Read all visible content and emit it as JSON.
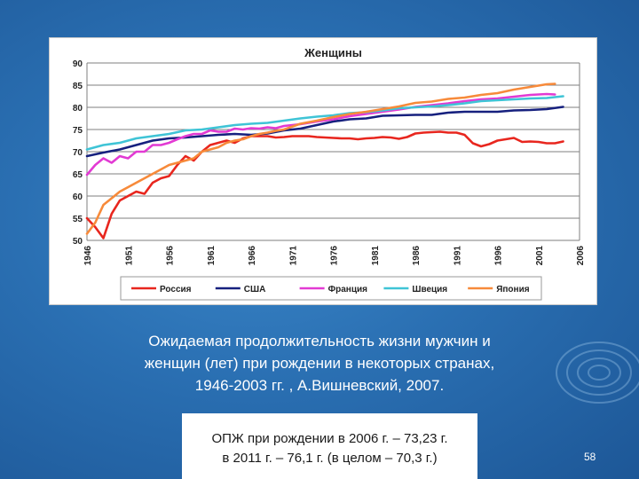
{
  "slide": {
    "caption_lines": [
      "Ожидаемая продолжительность жизни мужчин и",
      "женщин (лет) при рождении в некоторых странах,",
      "1946-2003 гг. , А.Вишневский, 2007."
    ],
    "note_lines": [
      "ОПЖ при рождении в 2006 г. – 73,23 г.",
      "в 2011 г. – 76,1 г. (в целом – 70,3 г.)"
    ],
    "page_number": "58"
  },
  "chart_data": {
    "type": "line",
    "title": "Женщины",
    "xlabel": "",
    "ylabel": "",
    "ylim": [
      50,
      90
    ],
    "yticks": [
      50,
      55,
      60,
      65,
      70,
      75,
      80,
      85,
      90
    ],
    "xlim": [
      1946,
      2006
    ],
    "xticks": [
      1946,
      1951,
      1956,
      1961,
      1966,
      1971,
      1976,
      1981,
      1986,
      1991,
      1996,
      2001,
      2006
    ],
    "grid": true,
    "legend_position": "bottom",
    "series": [
      {
        "name": "Россия",
        "color": "#e8261e",
        "points": [
          [
            1946,
            55
          ],
          [
            1947,
            53
          ],
          [
            1948,
            50.5
          ],
          [
            1949,
            56
          ],
          [
            1950,
            59
          ],
          [
            1951,
            60
          ],
          [
            1952,
            61
          ],
          [
            1953,
            60.5
          ],
          [
            1954,
            63
          ],
          [
            1955,
            64
          ],
          [
            1956,
            64.5
          ],
          [
            1957,
            67
          ],
          [
            1958,
            69
          ],
          [
            1959,
            68
          ],
          [
            1960,
            70
          ],
          [
            1961,
            71.5
          ],
          [
            1962,
            72
          ],
          [
            1963,
            72.5
          ],
          [
            1964,
            72
          ],
          [
            1965,
            73
          ],
          [
            1966,
            73.5
          ],
          [
            1967,
            73.5
          ],
          [
            1968,
            73.5
          ],
          [
            1969,
            73.2
          ],
          [
            1970,
            73.3
          ],
          [
            1971,
            73.5
          ],
          [
            1972,
            73.5
          ],
          [
            1973,
            73.5
          ],
          [
            1974,
            73.3
          ],
          [
            1975,
            73.2
          ],
          [
            1976,
            73.1
          ],
          [
            1977,
            73.0
          ],
          [
            1978,
            73.0
          ],
          [
            1979,
            72.8
          ],
          [
            1980,
            73.0
          ],
          [
            1981,
            73.1
          ],
          [
            1982,
            73.3
          ],
          [
            1983,
            73.2
          ],
          [
            1984,
            72.9
          ],
          [
            1985,
            73.3
          ],
          [
            1986,
            74.1
          ],
          [
            1987,
            74.3
          ],
          [
            1988,
            74.4
          ],
          [
            1989,
            74.5
          ],
          [
            1990,
            74.3
          ],
          [
            1991,
            74.3
          ],
          [
            1992,
            73.8
          ],
          [
            1993,
            71.9
          ],
          [
            1994,
            71.2
          ],
          [
            1995,
            71.7
          ],
          [
            1996,
            72.5
          ],
          [
            1997,
            72.8
          ],
          [
            1998,
            73.1
          ],
          [
            1999,
            72.2
          ],
          [
            2000,
            72.3
          ],
          [
            2001,
            72.2
          ],
          [
            2002,
            71.9
          ],
          [
            2003,
            71.9
          ],
          [
            2004,
            72.3
          ]
        ]
      },
      {
        "name": "США",
        "color": "#16207e",
        "points": [
          [
            1946,
            69
          ],
          [
            1948,
            69.8
          ],
          [
            1950,
            70.5
          ],
          [
            1952,
            71.5
          ],
          [
            1954,
            72.5
          ],
          [
            1956,
            73
          ],
          [
            1958,
            73.2
          ],
          [
            1960,
            73.5
          ],
          [
            1962,
            73.8
          ],
          [
            1964,
            74.0
          ],
          [
            1966,
            73.8
          ],
          [
            1968,
            74.1
          ],
          [
            1970,
            74.8
          ],
          [
            1972,
            75.2
          ],
          [
            1974,
            76
          ],
          [
            1976,
            76.8
          ],
          [
            1978,
            77.3
          ],
          [
            1980,
            77.5
          ],
          [
            1982,
            78.1
          ],
          [
            1984,
            78.2
          ],
          [
            1986,
            78.3
          ],
          [
            1988,
            78.3
          ],
          [
            1990,
            78.8
          ],
          [
            1992,
            79.0
          ],
          [
            1994,
            79.0
          ],
          [
            1996,
            79.0
          ],
          [
            1998,
            79.3
          ],
          [
            2000,
            79.4
          ],
          [
            2002,
            79.6
          ],
          [
            2004,
            80.1
          ]
        ]
      },
      {
        "name": "Франция",
        "color": "#e23ad3",
        "points": [
          [
            1946,
            64.8
          ],
          [
            1947,
            67
          ],
          [
            1948,
            68.5
          ],
          [
            1949,
            67.5
          ],
          [
            1950,
            69
          ],
          [
            1951,
            68.5
          ],
          [
            1952,
            70
          ],
          [
            1953,
            70
          ],
          [
            1954,
            71.5
          ],
          [
            1955,
            71.5
          ],
          [
            1956,
            72
          ],
          [
            1957,
            72.8
          ],
          [
            1958,
            73.5
          ],
          [
            1959,
            74
          ],
          [
            1960,
            74
          ],
          [
            1961,
            74.8
          ],
          [
            1962,
            74.5
          ],
          [
            1963,
            74.5
          ],
          [
            1964,
            75.2
          ],
          [
            1965,
            75
          ],
          [
            1966,
            75.3
          ],
          [
            1967,
            75.2
          ],
          [
            1968,
            75.5
          ],
          [
            1969,
            75.3
          ],
          [
            1970,
            75.8
          ],
          [
            1972,
            76.2
          ],
          [
            1974,
            76.8
          ],
          [
            1976,
            77.3
          ],
          [
            1978,
            78
          ],
          [
            1980,
            78.5
          ],
          [
            1982,
            79
          ],
          [
            1984,
            79.5
          ],
          [
            1986,
            80.1
          ],
          [
            1988,
            80.5
          ],
          [
            1990,
            80.9
          ],
          [
            1992,
            81.4
          ],
          [
            1994,
            81.8
          ],
          [
            1996,
            82
          ],
          [
            1998,
            82.4
          ],
          [
            2000,
            82.8
          ],
          [
            2002,
            83.0
          ],
          [
            2003,
            82.9
          ]
        ]
      },
      {
        "name": "Швеция",
        "color": "#3fc4d6",
        "points": [
          [
            1946,
            70.5
          ],
          [
            1948,
            71.5
          ],
          [
            1950,
            72
          ],
          [
            1952,
            73
          ],
          [
            1954,
            73.5
          ],
          [
            1956,
            74
          ],
          [
            1958,
            74.8
          ],
          [
            1960,
            75
          ],
          [
            1962,
            75.5
          ],
          [
            1964,
            76
          ],
          [
            1966,
            76.3
          ],
          [
            1968,
            76.5
          ],
          [
            1970,
            77
          ],
          [
            1972,
            77.5
          ],
          [
            1974,
            77.9
          ],
          [
            1976,
            78.2
          ],
          [
            1978,
            78.7
          ],
          [
            1980,
            78.9
          ],
          [
            1982,
            79.3
          ],
          [
            1984,
            79.8
          ],
          [
            1986,
            80
          ],
          [
            1988,
            80.2
          ],
          [
            1990,
            80.5
          ],
          [
            1992,
            80.9
          ],
          [
            1994,
            81.4
          ],
          [
            1996,
            81.6
          ],
          [
            1998,
            81.8
          ],
          [
            2000,
            82
          ],
          [
            2002,
            82.1
          ],
          [
            2004,
            82.5
          ]
        ]
      },
      {
        "name": "Япония",
        "color": "#f78a3a",
        "points": [
          [
            1946,
            51.5
          ],
          [
            1947,
            54
          ],
          [
            1948,
            58
          ],
          [
            1949,
            59.5
          ],
          [
            1950,
            61
          ],
          [
            1951,
            62
          ],
          [
            1952,
            63
          ],
          [
            1953,
            64
          ],
          [
            1954,
            65
          ],
          [
            1955,
            66
          ],
          [
            1956,
            67
          ],
          [
            1957,
            67.5
          ],
          [
            1958,
            68
          ],
          [
            1959,
            68.5
          ],
          [
            1960,
            70
          ],
          [
            1961,
            70.5
          ],
          [
            1962,
            71
          ],
          [
            1963,
            72
          ],
          [
            1964,
            72.5
          ],
          [
            1965,
            72.8
          ],
          [
            1966,
            73.5
          ],
          [
            1967,
            74
          ],
          [
            1968,
            74.3
          ],
          [
            1969,
            74.7
          ],
          [
            1970,
            75
          ],
          [
            1972,
            76.3
          ],
          [
            1974,
            77
          ],
          [
            1976,
            77.8
          ],
          [
            1978,
            78.5
          ],
          [
            1980,
            79
          ],
          [
            1982,
            79.6
          ],
          [
            1984,
            80.2
          ],
          [
            1986,
            81
          ],
          [
            1988,
            81.3
          ],
          [
            1990,
            81.9
          ],
          [
            1992,
            82.2
          ],
          [
            1994,
            82.8
          ],
          [
            1996,
            83.2
          ],
          [
            1998,
            84
          ],
          [
            2000,
            84.6
          ],
          [
            2002,
            85.2
          ],
          [
            2003,
            85.3
          ]
        ]
      }
    ]
  }
}
